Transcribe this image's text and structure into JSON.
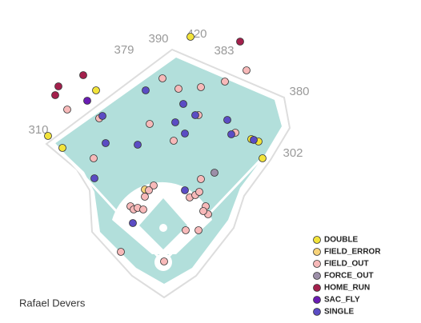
{
  "chart_data": {
    "type": "scatter",
    "title": "Rafael Devers",
    "field_labels": [
      "310",
      "379",
      "390",
      "420",
      "383",
      "380",
      "302"
    ],
    "xlim": [
      0,
      526
    ],
    "ylim": [
      404,
      0
    ],
    "series": [
      {
        "name": "DOUBLE",
        "color": "#f2e33a",
        "x": [
          238,
          120,
          60,
          78,
          314,
          323,
          328
        ],
        "y": [
          46,
          113,
          170,
          185,
          174,
          177,
          198
        ]
      },
      {
        "name": "FIELD_ERROR",
        "color": "#f7d37a",
        "x": [
          181
        ],
        "y": [
          237
        ]
      },
      {
        "name": "FIELD_OUT",
        "color": "#f7b9b9",
        "x": [
          203,
          223,
          251,
          281,
          308,
          187,
          248,
          217,
          124,
          117,
          84,
          294,
          251,
          192,
          186,
          181,
          237,
          244,
          249,
          163,
          167,
          172,
          179,
          257,
          260,
          254,
          232,
          248,
          151,
          205
        ],
        "y": [
          98,
          111,
          109,
          102,
          88,
          155,
          144,
          176,
          148,
          198,
          137,
          166,
          224,
          232,
          238,
          246,
          247,
          244,
          240,
          258,
          262,
          260,
          262,
          258,
          268,
          264,
          288,
          288,
          315,
          327
        ]
      },
      {
        "name": "FORCE_OUT",
        "color": "#9c8fa8",
        "x": [
          268
        ],
        "y": [
          216
        ]
      },
      {
        "name": "HOME_RUN",
        "color": "#a3204c",
        "x": [
          300,
          104,
          73,
          69
        ],
        "y": [
          52,
          94,
          108,
          119
        ]
      },
      {
        "name": "SAC_FLY",
        "color": "#6a1cb3",
        "x": [
          109
        ],
        "y": [
          126
        ]
      },
      {
        "name": "SINGLE",
        "color": "#5b4cc4",
        "x": [
          182,
          229,
          128,
          244,
          219,
          284,
          231,
          289,
          317,
          132,
          172,
          118,
          231,
          166
        ],
        "y": [
          113,
          130,
          145,
          144,
          153,
          150,
          167,
          168,
          175,
          179,
          181,
          223,
          238,
          279
        ]
      }
    ]
  }
}
